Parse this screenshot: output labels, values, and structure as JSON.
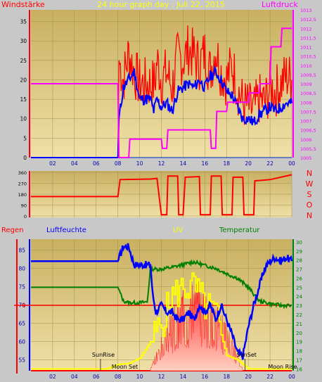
{
  "title": "24 hour graph day : Juli 22, 2015",
  "colors": {
    "wind_line": "#ff0000",
    "wind_avg": "#0000ff",
    "pressure": "#ff00ff",
    "direction": "#ff0000",
    "humidity": "#0000ff",
    "temperature": "#008000",
    "uv": "#ffff00",
    "solar": "#ff3030",
    "rain": "#ff0000",
    "plot_bg_top": "#c8b060",
    "plot_bg_bottom": "#f0e0a8",
    "frame_bg": "#c8c8c8"
  },
  "chart_data": [
    {
      "type": "line",
      "id": "wind_pressure",
      "left_label": "Windstärke",
      "right_label": "Luftdruck",
      "x_ticks": [
        "02",
        "04",
        "06",
        "08",
        "10",
        "12",
        "14",
        "16",
        "18",
        "20",
        "22",
        "00"
      ],
      "y_left_ticks": [
        0,
        5,
        10,
        15,
        20,
        25,
        30,
        35
      ],
      "y_left_range": [
        0,
        38
      ],
      "y_right_ticks": [
        "1005",
        "1005,5",
        "1006",
        "1006,5",
        "1007",
        "1007,5",
        "1008",
        "1008,5",
        "1009",
        "1009,5",
        "1010",
        "1010,5",
        "1011",
        "1011,5",
        "1012",
        "1012,5",
        "1013"
      ],
      "y_right_range": [
        1005,
        1013
      ],
      "series": [
        {
          "key": "wind_gust",
          "color": "#ff0000",
          "values_hour": [
            [
              8,
              0
            ],
            [
              8.1,
              25
            ],
            [
              8.5,
              20
            ],
            [
              9,
              27
            ],
            [
              9.5,
              22
            ],
            [
              10,
              19
            ],
            [
              11,
              19
            ],
            [
              11.4,
              19
            ],
            [
              11.6,
              25
            ],
            [
              12,
              20
            ],
            [
              12.5,
              22
            ],
            [
              13,
              18
            ],
            [
              13.5,
              26
            ],
            [
              14,
              25
            ],
            [
              14.5,
              28
            ],
            [
              15,
              26
            ],
            [
              15.5,
              24
            ],
            [
              16,
              27
            ],
            [
              16.5,
              22
            ],
            [
              17,
              28
            ],
            [
              17.5,
              22
            ],
            [
              18,
              20
            ],
            [
              18.5,
              24
            ],
            [
              19,
              18
            ],
            [
              19.5,
              14
            ],
            [
              20,
              13
            ],
            [
              20.5,
              12
            ],
            [
              21,
              15
            ],
            [
              21.5,
              14
            ],
            [
              22,
              18
            ],
            [
              22.5,
              17
            ],
            [
              23,
              19
            ],
            [
              23.5,
              21
            ],
            [
              24,
              20
            ]
          ]
        },
        {
          "key": "wind_avg",
          "color": "#0000ff",
          "values_hour": [
            [
              0,
              0
            ],
            [
              8,
              0
            ],
            [
              8.1,
              10
            ],
            [
              8.5,
              18
            ],
            [
              9,
              20
            ],
            [
              9.5,
              22
            ],
            [
              10,
              15
            ],
            [
              11,
              15
            ],
            [
              11.3,
              12
            ],
            [
              11.6,
              15
            ],
            [
              12,
              13
            ],
            [
              12.5,
              14
            ],
            [
              13,
              12
            ],
            [
              13.5,
              17
            ],
            [
              14,
              18
            ],
            [
              14.5,
              19
            ],
            [
              15,
              18
            ],
            [
              15.5,
              20
            ],
            [
              16,
              18
            ],
            [
              16.5,
              21
            ],
            [
              17,
              22
            ],
            [
              17.5,
              20
            ],
            [
              18,
              17
            ],
            [
              18.5,
              16
            ],
            [
              19,
              13
            ],
            [
              19.5,
              10
            ],
            [
              20,
              10
            ],
            [
              20.5,
              9
            ],
            [
              21,
              11
            ],
            [
              21.5,
              12
            ],
            [
              22,
              13
            ],
            [
              22.5,
              12
            ],
            [
              23,
              13
            ],
            [
              23.5,
              14
            ],
            [
              24,
              14
            ]
          ]
        },
        {
          "key": "pressure",
          "color": "#ff00ff",
          "values_hour": [
            [
              0,
              1009
            ],
            [
              8,
              1009
            ],
            [
              8.1,
              1005
            ],
            [
              9,
              1005
            ],
            [
              9.1,
              1006
            ],
            [
              12,
              1006
            ],
            [
              12.1,
              1005.5
            ],
            [
              12.5,
              1005.5
            ],
            [
              12.6,
              1006.5
            ],
            [
              16.5,
              1006.5
            ],
            [
              16.6,
              1005.5
            ],
            [
              17,
              1005.5
            ],
            [
              17.1,
              1007.5
            ],
            [
              18,
              1007.5
            ],
            [
              18.1,
              1008
            ],
            [
              20,
              1008
            ],
            [
              20.1,
              1008.5
            ],
            [
              21,
              1008.5
            ],
            [
              21.1,
              1009
            ],
            [
              22,
              1009
            ],
            [
              22.1,
              1011
            ],
            [
              23,
              1011
            ],
            [
              23.1,
              1012
            ],
            [
              24,
              1012
            ]
          ]
        }
      ]
    },
    {
      "type": "line",
      "id": "wind_direction",
      "y_ticks": [
        0,
        90,
        180,
        270,
        360
      ],
      "right_labels": [
        "N",
        "W",
        "S",
        "O",
        "N"
      ],
      "series": [
        {
          "key": "direction",
          "color": "#ff0000",
          "values_hour": [
            [
              0,
              160
            ],
            [
              8,
              160
            ],
            [
              8.2,
              300
            ],
            [
              11,
              305
            ],
            [
              11.6,
              310
            ],
            [
              12,
              10
            ],
            [
              12.5,
              10
            ],
            [
              12.6,
              330
            ],
            [
              13.5,
              330
            ],
            [
              13.6,
              10
            ],
            [
              14,
              10
            ],
            [
              14.2,
              320
            ],
            [
              15.5,
              325
            ],
            [
              15.6,
              10
            ],
            [
              16.5,
              10
            ],
            [
              16.6,
              330
            ],
            [
              17.5,
              330
            ],
            [
              17.6,
              10
            ],
            [
              18.5,
              10
            ],
            [
              18.6,
              320
            ],
            [
              19.5,
              320
            ],
            [
              19.6,
              10
            ],
            [
              20.5,
              10
            ],
            [
              20.6,
              290
            ],
            [
              22,
              300
            ],
            [
              24,
              340
            ]
          ]
        }
      ]
    },
    {
      "type": "line",
      "id": "weather",
      "left_label": "Regen",
      "labels": [
        "Luftfeuchte",
        "UV",
        "Temperatur"
      ],
      "x_ticks": [
        "02",
        "04",
        "06",
        "08",
        "10",
        "12",
        "14",
        "16",
        "18",
        "20",
        "22",
        "00"
      ],
      "y_left_ticks": [
        55,
        60,
        65,
        70,
        75,
        80,
        85
      ],
      "y_left_range": [
        52,
        88
      ],
      "y_right_ticks": [
        16,
        17,
        18,
        19,
        20,
        21,
        22,
        23,
        24,
        25,
        26,
        27,
        28,
        29,
        30
      ],
      "y_right_range": [
        15.8,
        30.3
      ],
      "rain_zero_label": "0",
      "annotations": [
        "SunRise",
        "Moon Set",
        "SunSet",
        "Moon Rise"
      ],
      "series": [
        {
          "key": "humidity",
          "color": "#0000ff",
          "values_hour": [
            [
              0,
              82
            ],
            [
              8,
              82
            ],
            [
              8.5,
              86
            ],
            [
              9,
              86
            ],
            [
              9.5,
              81
            ],
            [
              10,
              81
            ],
            [
              11,
              81
            ],
            [
              11.2,
              73
            ],
            [
              11.5,
              68
            ],
            [
              12,
              70
            ],
            [
              12.5,
              68
            ],
            [
              13,
              68
            ],
            [
              13.5,
              66
            ],
            [
              14,
              66
            ],
            [
              14.5,
              68
            ],
            [
              15,
              66
            ],
            [
              15.5,
              70
            ],
            [
              16,
              68
            ],
            [
              16.5,
              70
            ],
            [
              17,
              66
            ],
            [
              17.5,
              70
            ],
            [
              18,
              66
            ],
            [
              18.5,
              62
            ],
            [
              19,
              57
            ],
            [
              19.5,
              56
            ],
            [
              20,
              64
            ],
            [
              20.5,
              70
            ],
            [
              21,
              75
            ],
            [
              21.5,
              80
            ],
            [
              22,
              82
            ],
            [
              22.5,
              83
            ],
            [
              23,
              82
            ],
            [
              23.5,
              83
            ],
            [
              24,
              82
            ]
          ]
        },
        {
          "key": "temperature",
          "color": "#008000",
          "values_hour": [
            [
              0,
              25
            ],
            [
              8,
              25
            ],
            [
              8.5,
              23.5
            ],
            [
              9,
              23.3
            ],
            [
              10,
              23.3
            ],
            [
              10.7,
              23.4
            ],
            [
              11,
              27
            ],
            [
              12,
              27
            ],
            [
              13,
              27.2
            ],
            [
              14,
              27.5
            ],
            [
              15,
              27.8
            ],
            [
              16,
              27.4
            ],
            [
              17,
              27.1
            ],
            [
              18,
              26.5
            ],
            [
              19,
              26
            ],
            [
              20,
              25
            ],
            [
              21,
              23.5
            ],
            [
              22,
              23.2
            ],
            [
              23,
              23
            ],
            [
              24,
              23
            ]
          ]
        },
        {
          "key": "uv",
          "color": "#ffff00",
          "values_hour": [
            [
              0,
              16
            ],
            [
              7,
              16
            ],
            [
              8,
              16.5
            ],
            [
              9,
              16.6
            ],
            [
              10,
              17.2
            ],
            [
              11,
              19
            ],
            [
              12,
              21
            ],
            [
              13,
              24
            ],
            [
              14,
              25
            ],
            [
              15,
              25
            ],
            [
              16,
              23
            ],
            [
              17,
              22
            ],
            [
              18,
              17.5
            ],
            [
              19,
              17
            ],
            [
              20,
              16
            ],
            [
              24,
              16
            ]
          ]
        }
      ]
    }
  ]
}
